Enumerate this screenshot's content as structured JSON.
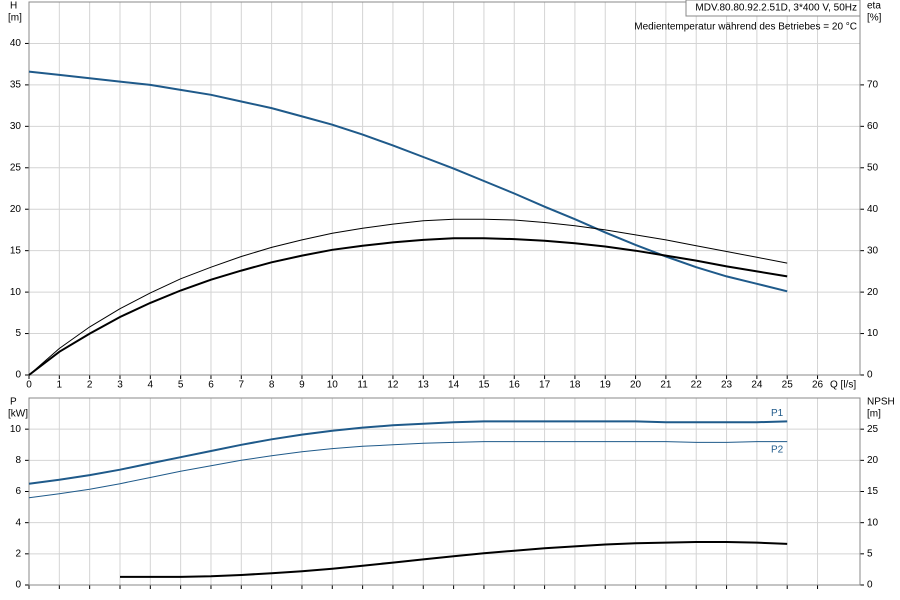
{
  "chart_data": [
    {
      "type": "line",
      "title": "MDV.80.80.92.2.51D, 3*400 V, 50Hz",
      "subtitle": "Medientemperatur während des Betriebes = 20 °C",
      "ylabel": "H",
      "yunit": "[m]",
      "y2label": "eta",
      "y2unit": "[%]",
      "xlabel": "Q [l/s]",
      "x": [
        0,
        1,
        2,
        3,
        4,
        5,
        6,
        7,
        8,
        9,
        10,
        11,
        12,
        13,
        14,
        15,
        16,
        17,
        18,
        19,
        20,
        21,
        22,
        23,
        24,
        25
      ],
      "xlim": [
        0,
        27.4
      ],
      "xticks": [
        0,
        1,
        2,
        3,
        4,
        5,
        6,
        7,
        8,
        9,
        10,
        11,
        12,
        13,
        14,
        15,
        16,
        17,
        18,
        19,
        20,
        21,
        22,
        23,
        24,
        25,
        26
      ],
      "ylim": [
        0,
        45
      ],
      "yticks": [
        0,
        5,
        10,
        15,
        20,
        25,
        30,
        35,
        40
      ],
      "y2lim": [
        0,
        90
      ],
      "y2ticks": [
        0,
        10,
        20,
        30,
        40,
        50,
        60,
        70
      ],
      "grid": true,
      "series": [
        {
          "color": "#1f5a8a",
          "width": 2,
          "axis": "y",
          "values": [
            36.6,
            36.2,
            35.8,
            35.4,
            35,
            34.4,
            33.8,
            33,
            32.2,
            31.2,
            30.2,
            29,
            27.7,
            26.3,
            24.9,
            23.4,
            21.9,
            20.3,
            18.8,
            17.2,
            15.7,
            14.3,
            13,
            11.9,
            11,
            10.1
          ]
        },
        {
          "color": "#000000",
          "width": 1,
          "axis": "y2",
          "values": [
            0,
            6.4,
            11.6,
            16,
            19.8,
            23.2,
            26,
            28.6,
            30.8,
            32.6,
            34.2,
            35.4,
            36.4,
            37.2,
            37.6,
            37.6,
            37.4,
            36.8,
            36,
            35,
            33.8,
            32.6,
            31.2,
            29.8,
            28.4,
            27
          ]
        },
        {
          "color": "#000000",
          "width": 2,
          "axis": "y2",
          "values": [
            0,
            5.6,
            10,
            14,
            17.4,
            20.4,
            23,
            25.2,
            27.2,
            28.8,
            30.2,
            31.2,
            32,
            32.6,
            33,
            33,
            32.8,
            32.4,
            31.8,
            31,
            30,
            28.8,
            27.6,
            26.2,
            25,
            23.8
          ]
        }
      ]
    },
    {
      "type": "line",
      "ylabel": "P",
      "yunit": "[kW]",
      "y2label": "NPSH",
      "y2unit": "[m]",
      "x": [
        0,
        1,
        2,
        3,
        4,
        5,
        6,
        7,
        8,
        9,
        10,
        11,
        12,
        13,
        14,
        15,
        16,
        17,
        18,
        19,
        20,
        21,
        22,
        23,
        24,
        25
      ],
      "xlim": [
        0,
        27.4
      ],
      "ylim": [
        0,
        12
      ],
      "yticks": [
        0,
        2,
        4,
        6,
        8,
        10
      ],
      "y2lim": [
        0,
        30
      ],
      "y2ticks": [
        0,
        5,
        10,
        15,
        20,
        25
      ],
      "grid": true,
      "series": [
        {
          "name": "P1",
          "color": "#1f5a8a",
          "width": 2,
          "axis": "y",
          "values": [
            6.5,
            6.75,
            7.05,
            7.4,
            7.8,
            8.2,
            8.6,
            9,
            9.35,
            9.65,
            9.9,
            10.1,
            10.25,
            10.35,
            10.45,
            10.5,
            10.5,
            10.5,
            10.5,
            10.5,
            10.5,
            10.45,
            10.45,
            10.45,
            10.45,
            10.5
          ]
        },
        {
          "name": "P2",
          "color": "#1f5a8a",
          "width": 1,
          "axis": "y",
          "values": [
            5.6,
            5.85,
            6.15,
            6.5,
            6.9,
            7.3,
            7.65,
            8,
            8.3,
            8.55,
            8.75,
            8.9,
            9,
            9.1,
            9.15,
            9.2,
            9.2,
            9.2,
            9.2,
            9.2,
            9.2,
            9.2,
            9.15,
            9.15,
            9.2,
            9.2
          ]
        },
        {
          "color": "#000000",
          "width": 2,
          "axis": "y2",
          "values": [
            null,
            null,
            null,
            1.3,
            1.3,
            1.3,
            1.4,
            1.6,
            1.9,
            2.2,
            2.6,
            3.1,
            3.6,
            4.1,
            4.6,
            5.1,
            5.5,
            5.9,
            6.2,
            6.5,
            6.7,
            6.8,
            6.9,
            6.9,
            6.8,
            6.6
          ]
        }
      ]
    }
  ]
}
